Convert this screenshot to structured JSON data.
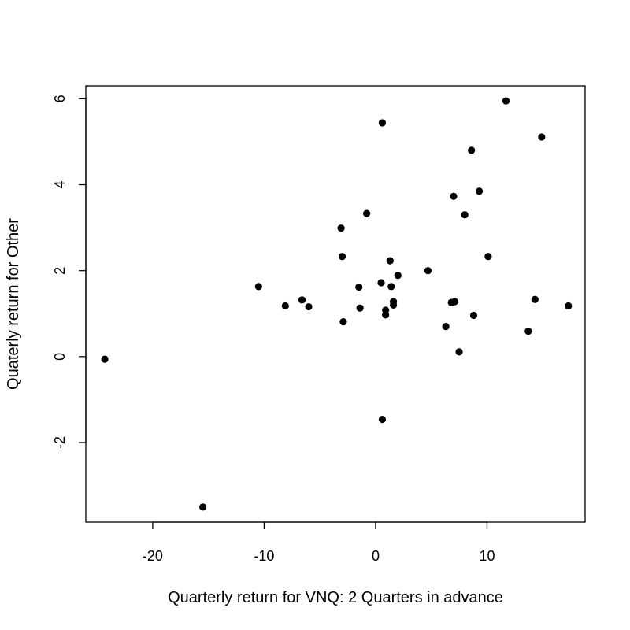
{
  "chart_data": {
    "type": "scatter",
    "title": "",
    "xlabel": "Quarterly return for VNQ: 2 Quarters in advance",
    "ylabel": "Quaterly return for Other",
    "xlim": [
      -26,
      18.8
    ],
    "ylim": [
      -3.85,
      6.3
    ],
    "x_ticks": [
      -20,
      -10,
      0,
      10
    ],
    "y_ticks": [
      -2,
      0,
      2,
      4,
      6
    ],
    "x_tick_labels": [
      "-20",
      "-10",
      "0",
      "10"
    ],
    "y_tick_labels": [
      "-2",
      "0",
      "2",
      "4",
      "6"
    ],
    "grid": false,
    "legend": "none",
    "point_color": "#000000",
    "points": [
      {
        "x": -24.3,
        "y": -0.06
      },
      {
        "x": -15.5,
        "y": -3.5
      },
      {
        "x": -10.5,
        "y": 1.63
      },
      {
        "x": -8.1,
        "y": 1.18
      },
      {
        "x": -6.6,
        "y": 1.32
      },
      {
        "x": -6.0,
        "y": 1.16
      },
      {
        "x": -3.1,
        "y": 2.99
      },
      {
        "x": -3.0,
        "y": 2.33
      },
      {
        "x": -2.9,
        "y": 0.81
      },
      {
        "x": -1.5,
        "y": 1.62
      },
      {
        "x": -1.4,
        "y": 1.13
      },
      {
        "x": -0.8,
        "y": 3.33
      },
      {
        "x": 0.5,
        "y": 1.72
      },
      {
        "x": 0.6,
        "y": 5.44
      },
      {
        "x": 0.6,
        "y": -1.46
      },
      {
        "x": 0.9,
        "y": 1.08
      },
      {
        "x": 0.9,
        "y": 0.97
      },
      {
        "x": 1.3,
        "y": 2.23
      },
      {
        "x": 1.4,
        "y": 1.63
      },
      {
        "x": 1.6,
        "y": 1.28
      },
      {
        "x": 1.6,
        "y": 1.2
      },
      {
        "x": 2.0,
        "y": 1.89
      },
      {
        "x": 4.7,
        "y": 2.0
      },
      {
        "x": 6.3,
        "y": 0.7
      },
      {
        "x": 6.8,
        "y": 1.26
      },
      {
        "x": 7.0,
        "y": 3.73
      },
      {
        "x": 7.1,
        "y": 1.28
      },
      {
        "x": 7.5,
        "y": 0.11
      },
      {
        "x": 8.0,
        "y": 3.3
      },
      {
        "x": 8.6,
        "y": 4.8
      },
      {
        "x": 8.8,
        "y": 0.96
      },
      {
        "x": 9.3,
        "y": 3.85
      },
      {
        "x": 10.1,
        "y": 2.33
      },
      {
        "x": 11.7,
        "y": 5.95
      },
      {
        "x": 13.7,
        "y": 0.59
      },
      {
        "x": 14.3,
        "y": 1.33
      },
      {
        "x": 14.9,
        "y": 5.11
      },
      {
        "x": 17.3,
        "y": 1.18
      }
    ]
  }
}
